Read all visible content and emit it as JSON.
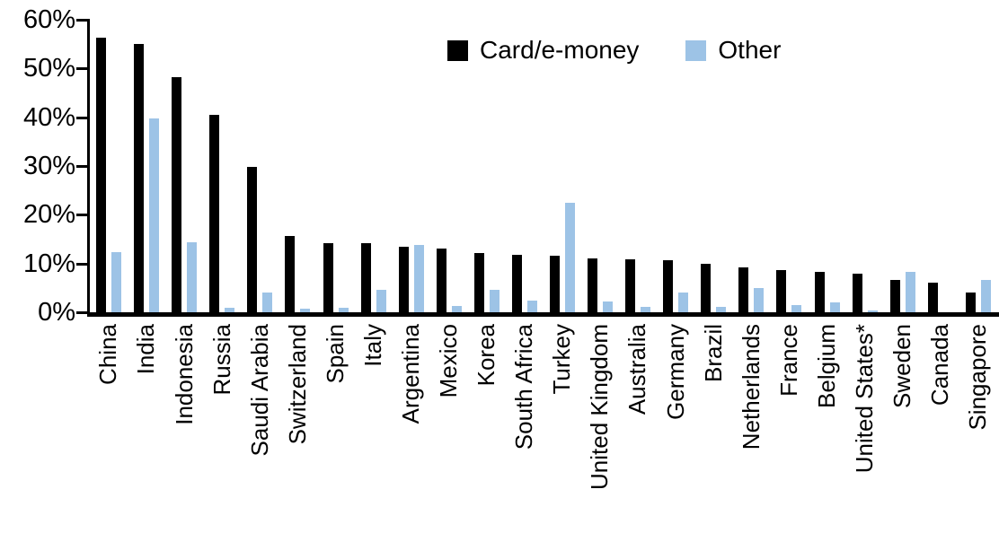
{
  "background_color": "#ffffff",
  "chart_data": {
    "type": "bar",
    "title": "",
    "xlabel": "",
    "ylabel": "",
    "ylim": [
      0,
      60
    ],
    "ytick_labels": [
      "0%",
      "10%",
      "20%",
      "30%",
      "40%",
      "50%",
      "60%"
    ],
    "grid": false,
    "legend_position": "top",
    "categories": [
      "China",
      "India",
      "Indonesia",
      "Russia",
      "Saudi Arabia",
      "Switzerland",
      "Spain",
      "Italy",
      "Argentina",
      "Mexico",
      "Korea",
      "South Africa",
      "Turkey",
      "United Kingdom",
      "Australia",
      "Germany",
      "Brazil",
      "Netherlands",
      "France",
      "Belgium",
      "United States*",
      "Sweden",
      "Canada",
      "Singapore"
    ],
    "series": [
      {
        "name": "Card/e-money",
        "color": "#000000",
        "values": [
          56.3,
          55.0,
          48.3,
          40.5,
          29.8,
          15.6,
          14.2,
          14.1,
          13.4,
          13.0,
          12.2,
          11.7,
          11.6,
          11.1,
          10.8,
          10.6,
          10.0,
          9.3,
          8.7,
          8.3,
          8.0,
          6.6,
          6.0,
          4.0
        ]
      },
      {
        "name": "Other",
        "color": "#9DC3E6",
        "values": [
          12.3,
          39.7,
          14.4,
          1.0,
          4.0,
          0.8,
          1.0,
          4.7,
          13.8,
          1.3,
          4.7,
          2.4,
          22.4,
          2.3,
          1.1,
          4.0,
          1.2,
          4.9,
          1.5,
          2.1,
          0.3,
          8.2,
          0.0,
          6.7
        ]
      }
    ]
  }
}
